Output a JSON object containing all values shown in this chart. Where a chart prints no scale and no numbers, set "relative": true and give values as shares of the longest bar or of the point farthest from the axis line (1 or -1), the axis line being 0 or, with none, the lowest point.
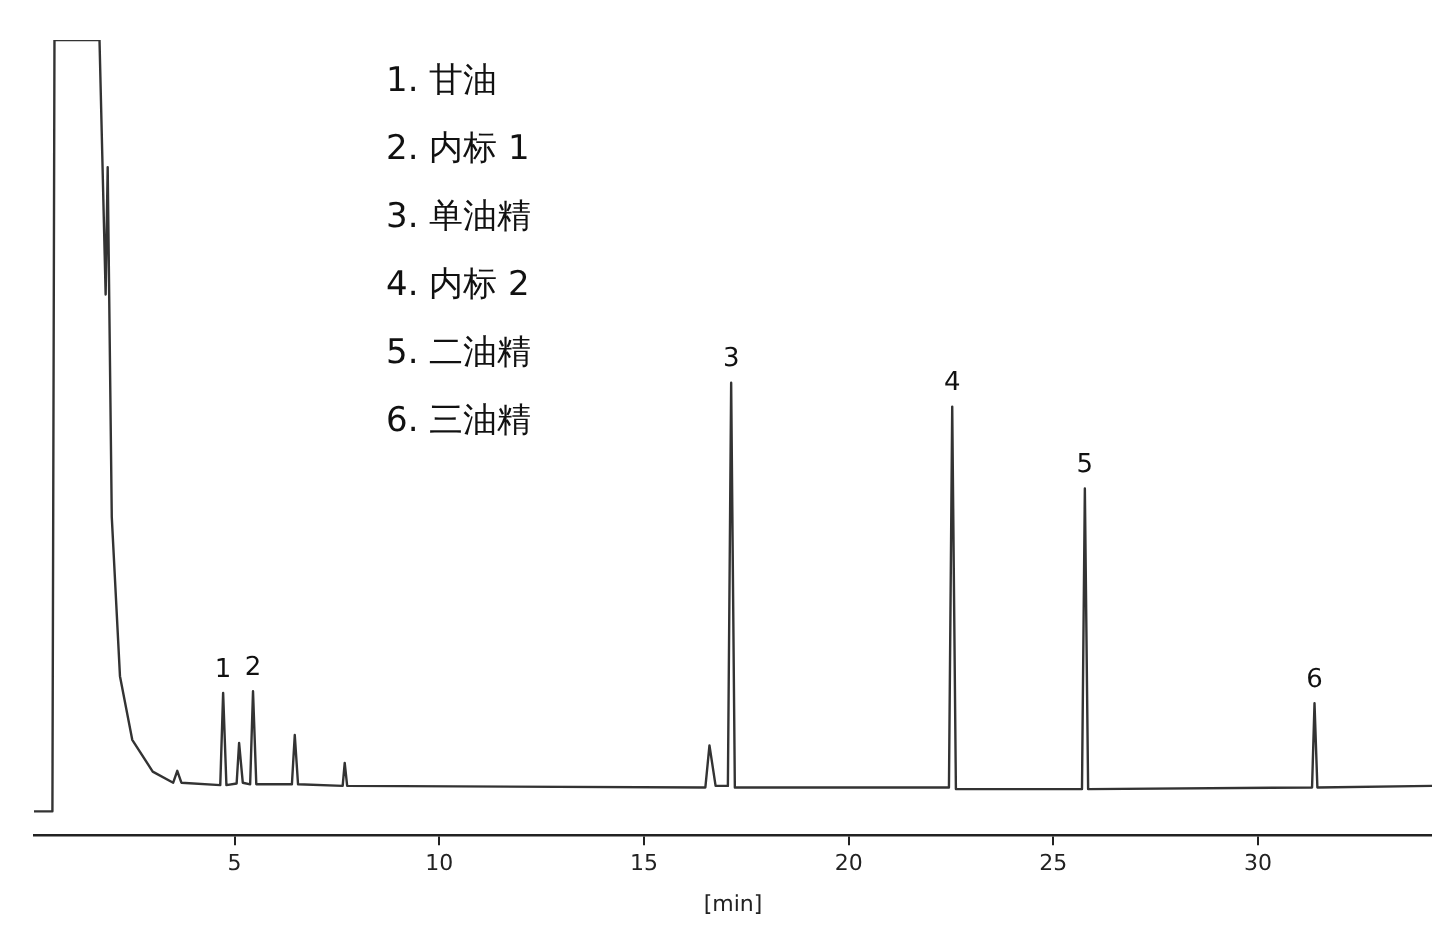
{
  "chart_data": {
    "type": "line",
    "relative": true,
    "xlabel": "[min]",
    "xlim": [
      0.1,
      34.25
    ],
    "xticks": [
      5,
      10,
      15,
      20,
      25,
      30
    ],
    "marker": "none",
    "x": [
      0.1,
      0.55,
      0.6,
      1.7,
      1.85,
      1.9,
      2.0,
      2.2,
      2.5,
      3.0,
      3.5,
      3.6,
      3.7,
      4.65,
      4.72,
      4.8,
      5.05,
      5.11,
      5.2,
      5.38,
      5.45,
      5.53,
      6.4,
      6.47,
      6.55,
      7.64,
      7.69,
      7.75,
      16.5,
      16.6,
      16.75,
      17.05,
      17.13,
      17.22,
      22.45,
      22.53,
      22.62,
      25.7,
      25.77,
      25.85,
      31.32,
      31.38,
      31.45,
      34.25
    ],
    "series": [
      {
        "color": "#333333",
        "values": [
          0.03,
          0.03,
          1,
          1,
          0.68,
          0.84,
          0.4,
          0.2,
          0.12,
          0.08,
          0.066,
          0.081,
          0.066,
          0.063,
          0.179,
          0.063,
          0.065,
          0.116,
          0.066,
          0.064,
          0.181,
          0.064,
          0.064,
          0.126,
          0.064,
          0.062,
          0.091,
          0.062,
          0.06,
          0.113,
          0.062,
          0.062,
          0.569,
          0.06,
          0.06,
          0.539,
          0.058,
          0.058,
          0.436,
          0.058,
          0.06,
          0.166,
          0.06,
          0.062
        ]
      }
    ],
    "annotations": [
      "1. 甘油",
      "2. 内标 1",
      "3. 单油精",
      "4. 内标 2",
      "5. 二油精",
      "6. 三油精",
      {
        "text": "1",
        "x": 4.72,
        "y": 0.179
      },
      {
        "text": "2",
        "x": 5.45,
        "y": 0.181
      },
      {
        "text": "3",
        "x": 17.13,
        "y": 0.569
      },
      {
        "text": "4",
        "x": 22.53,
        "y": 0.539
      },
      {
        "text": "5",
        "x": 25.77,
        "y": 0.436
      },
      {
        "text": "6",
        "x": 31.38,
        "y": 0.166
      }
    ]
  }
}
